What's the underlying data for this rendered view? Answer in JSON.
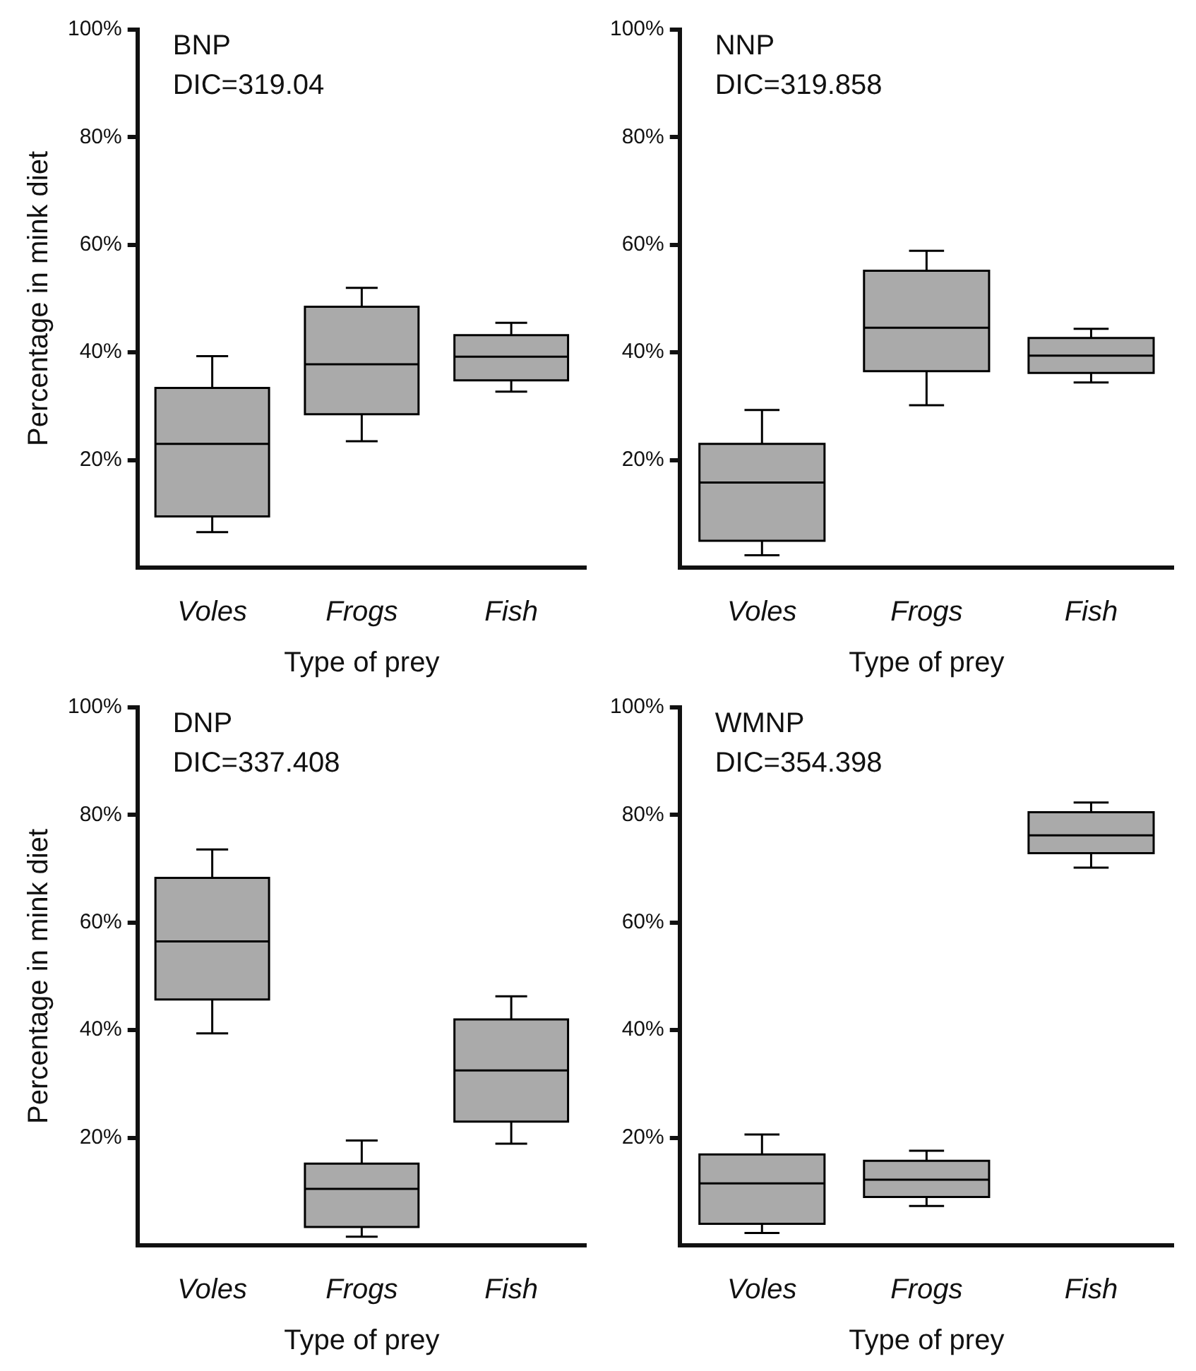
{
  "chart_data": [
    {
      "type": "box",
      "title": "BNP",
      "subtitle": "DIC=319.04",
      "xlabel": "Type of prey",
      "ylabel": "Percentage in mink diet",
      "categories": [
        "Voles",
        "Frogs",
        "Fish"
      ],
      "color": "#aaaaaa",
      "ylim": [
        0,
        100
      ],
      "yticks": [
        {
          "value": 20,
          "label": "20%"
        },
        {
          "value": 40,
          "label": "40%"
        },
        {
          "value": 60,
          "label": "60%"
        },
        {
          "value": 80,
          "label": "80%"
        },
        {
          "value": 100,
          "label": "100%"
        }
      ],
      "boxes": [
        {
          "low": 6.6,
          "q1": 9.5,
          "median": 23.0,
          "q3": 33.4,
          "high": 39.3
        },
        {
          "low": 23.5,
          "q1": 28.5,
          "median": 37.8,
          "q3": 48.5,
          "high": 52.0
        },
        {
          "low": 32.7,
          "q1": 34.8,
          "median": 39.2,
          "q3": 43.2,
          "high": 45.5
        }
      ]
    },
    {
      "type": "box",
      "title": "NNP",
      "subtitle": "DIC=319.858",
      "xlabel": "Type of prey",
      "categories": [
        "Voles",
        "Frogs",
        "Fish"
      ],
      "color": "#aaaaaa",
      "ylim": [
        0,
        100
      ],
      "yticks": [
        {
          "value": 20,
          "label": "20%"
        },
        {
          "value": 40,
          "label": "40%"
        },
        {
          "value": 60,
          "label": "60%"
        },
        {
          "value": 80,
          "label": "80%"
        },
        {
          "value": 100,
          "label": "100%"
        }
      ],
      "boxes": [
        {
          "low": 2.3,
          "q1": 5.0,
          "median": 15.8,
          "q3": 23.0,
          "high": 29.3
        },
        {
          "low": 30.2,
          "q1": 36.5,
          "median": 44.6,
          "q3": 55.2,
          "high": 58.9
        },
        {
          "low": 34.4,
          "q1": 36.2,
          "median": 39.4,
          "q3": 42.7,
          "high": 44.4
        }
      ]
    },
    {
      "type": "box",
      "title": "DNP",
      "subtitle": "DIC=337.408",
      "xlabel": "Type of prey",
      "ylabel": "Percentage in mink diet",
      "categories": [
        "Voles",
        "Frogs",
        "Fish"
      ],
      "color": "#aaaaaa",
      "ylim": [
        0,
        100
      ],
      "yticks": [
        {
          "value": 20,
          "label": "20%"
        },
        {
          "value": 40,
          "label": "40%"
        },
        {
          "value": 60,
          "label": "60%"
        },
        {
          "value": 80,
          "label": "80%"
        },
        {
          "value": 100,
          "label": "100%"
        }
      ],
      "boxes": [
        {
          "low": 39.4,
          "q1": 45.7,
          "median": 56.5,
          "q3": 68.3,
          "high": 73.6
        },
        {
          "low": 1.6,
          "q1": 3.4,
          "median": 10.5,
          "q3": 15.2,
          "high": 19.5
        },
        {
          "low": 18.9,
          "q1": 23.0,
          "median": 32.5,
          "q3": 42.0,
          "high": 46.3
        }
      ]
    },
    {
      "type": "box",
      "title": "WMNP",
      "subtitle": "DIC=354.398",
      "xlabel": "Type of prey",
      "categories": [
        "Voles",
        "Frogs",
        "Fish"
      ],
      "color": "#aaaaaa",
      "ylim": [
        0,
        100
      ],
      "yticks": [
        {
          "value": 20,
          "label": "20%"
        },
        {
          "value": 40,
          "label": "40%"
        },
        {
          "value": 60,
          "label": "60%"
        },
        {
          "value": 80,
          "label": "80%"
        },
        {
          "value": 100,
          "label": "100%"
        }
      ],
      "boxes": [
        {
          "low": 2.3,
          "q1": 4.0,
          "median": 11.5,
          "q3": 16.9,
          "high": 20.6
        },
        {
          "low": 7.3,
          "q1": 9.0,
          "median": 12.2,
          "q3": 15.7,
          "high": 17.6
        },
        {
          "low": 70.2,
          "q1": 72.9,
          "median": 76.2,
          "q3": 80.5,
          "high": 82.3
        }
      ]
    }
  ]
}
